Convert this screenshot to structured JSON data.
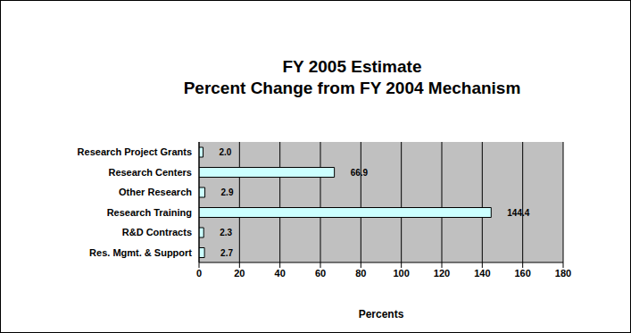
{
  "chart_data": {
    "type": "bar",
    "orientation": "horizontal",
    "title": "FY 2005 Estimate",
    "subtitle": "Percent Change from FY 2004 Mechanism",
    "x_label": "Percents",
    "categories": [
      "Research Project Grants",
      "Research Centers",
      "Other Research",
      "Research Training",
      "R&D Contracts",
      "Res. Mgmt. & Support"
    ],
    "values": [
      2.0,
      66.9,
      2.9,
      144.4,
      2.3,
      2.7
    ],
    "value_labels": [
      "2.0",
      "66.9",
      "2.9",
      "144.4",
      "2.3",
      "2.7"
    ],
    "color": "#ccffff",
    "xlim": [
      0,
      180
    ],
    "xticks": [
      0,
      20,
      40,
      60,
      80,
      100,
      120,
      140,
      160,
      180
    ],
    "grid": true,
    "data_labels": true
  }
}
